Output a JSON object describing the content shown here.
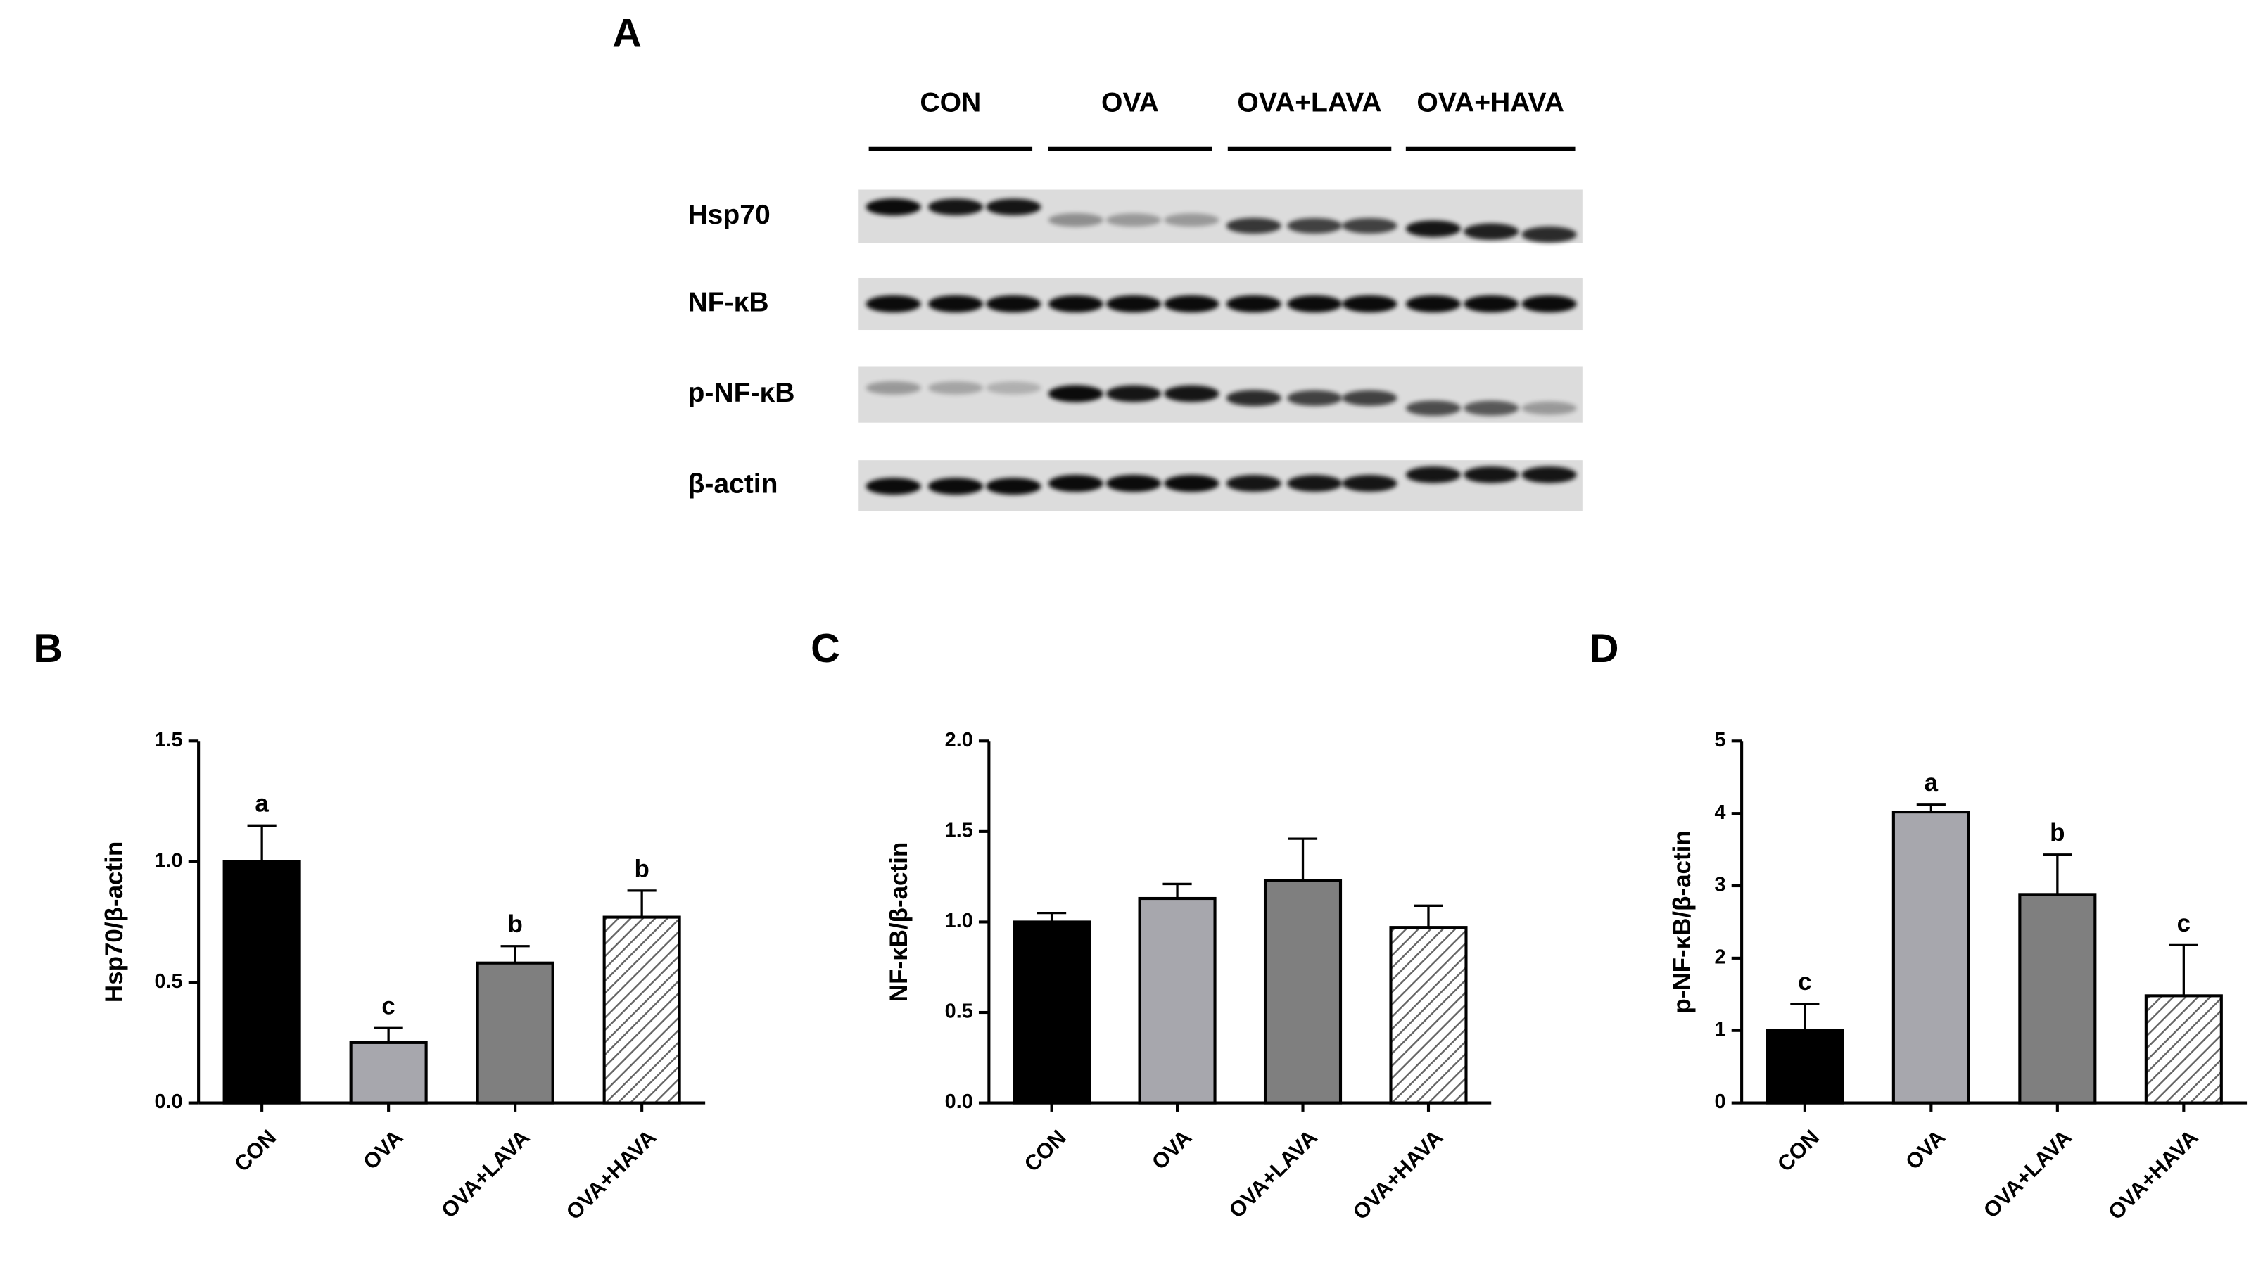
{
  "blot": {
    "label": "A",
    "groups": [
      "CON",
      "OVA",
      "OVA+LAVA",
      "OVA+HAVA"
    ],
    "proteins": [
      "Hsp70",
      "NF-κB",
      "p-NF-κB",
      "β-actin"
    ]
  },
  "chart_data": [
    {
      "type": "bar",
      "label": "B",
      "y_label": "Hsp70/β-actin",
      "categories": [
        "CON",
        "OVA",
        "OVA+LAVA",
        "OVA+HAVA"
      ],
      "values": [
        1.0,
        0.25,
        0.58,
        0.77
      ],
      "errors": [
        0.15,
        0.06,
        0.07,
        0.11
      ],
      "annotations": [
        "a",
        "c",
        "b",
        "b"
      ],
      "colors": [
        "#000000",
        "#a7a7ad",
        "#7f7f7f",
        "#ffffff"
      ],
      "hatch": [
        false,
        false,
        false,
        true
      ],
      "ylim": [
        0,
        1.5
      ],
      "yticks": [
        {
          "value": 0,
          "label": "0.0"
        },
        0.5,
        {
          "value": 1,
          "label": "1.0"
        },
        1.5
      ]
    },
    {
      "type": "bar",
      "label": "C",
      "y_label": "NF-κB/β-actin",
      "categories": [
        "CON",
        "OVA",
        "OVA+LAVA",
        "OVA+HAVA"
      ],
      "values": [
        1.0,
        1.13,
        1.23,
        0.97
      ],
      "errors": [
        0.05,
        0.08,
        0.23,
        0.12
      ],
      "colors": [
        "#000000",
        "#a7a7ad",
        "#7f7f7f",
        "#ffffff"
      ],
      "hatch": [
        false,
        false,
        false,
        true
      ],
      "ylim": [
        0,
        2
      ],
      "yticks": [
        {
          "value": 0,
          "label": "0.0"
        },
        0.5,
        {
          "value": 1,
          "label": "1.0"
        },
        1.5,
        {
          "value": 2,
          "label": "2.0"
        }
      ]
    },
    {
      "type": "bar",
      "label": "D",
      "y_label": "p-NF-κB/β-actin",
      "categories": [
        "CON",
        "OVA",
        "OVA+LAVA",
        "OVA+HAVA"
      ],
      "values": [
        1.0,
        4.02,
        2.88,
        1.48
      ],
      "errors": [
        0.37,
        0.1,
        0.55,
        0.7
      ],
      "annotations": [
        "c",
        "a",
        "b",
        "c"
      ],
      "colors": [
        "#000000",
        "#a7a7ad",
        "#7f7f7f",
        "#ffffff"
      ],
      "hatch": [
        false,
        false,
        false,
        true
      ],
      "ylim": [
        0,
        5
      ],
      "yticks": [
        0,
        1,
        2,
        3,
        4,
        5
      ]
    }
  ]
}
